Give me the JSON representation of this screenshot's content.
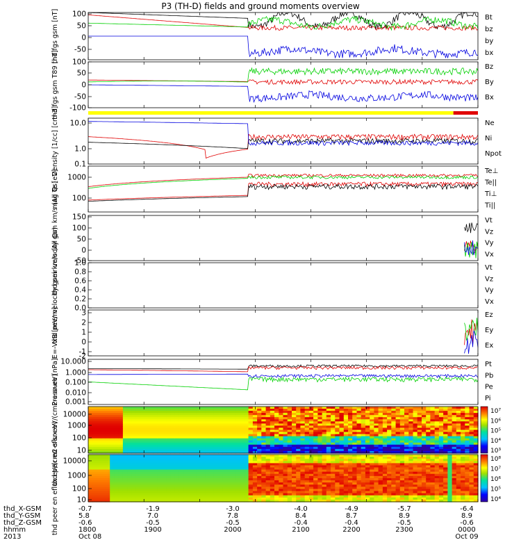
{
  "title": "P3 (TH-D) fields and ground moments overview",
  "colors": {
    "black": "#000000",
    "red": "#e00000",
    "green": "#00d000",
    "blue": "#0000e0",
    "yellow": "#ffff00"
  },
  "footer": {
    "rows": [
      {
        "label": "thd_X-GSM",
        "values": [
          "-0.7",
          "-1.9",
          "-3.0",
          "-4.0",
          "-4.9",
          "-5.7",
          "-6.4"
        ]
      },
      {
        "label": "thd_Y-GSM",
        "values": [
          "5.8",
          "7.0",
          "7.8",
          "8.4",
          "8.7",
          "8.9",
          "8.9"
        ]
      },
      {
        "label": "thd_Z-GSM",
        "values": [
          "-0.6",
          "-0.5",
          "-0.5",
          "-0.4",
          "-0.4",
          "-0.5",
          "-0.6"
        ]
      },
      {
        "label": "hhmm",
        "values": [
          "1800",
          "1900",
          "2000",
          "2100",
          "2200",
          "2300",
          "0000"
        ]
      },
      {
        "label": "2013",
        "values": [
          "Oct 08",
          "",
          "",
          "",
          "",
          "",
          "Oct 09"
        ]
      }
    ]
  },
  "chart_data": [
    {
      "type": "line",
      "ylabel": "thd fgs gsm [nT]",
      "ylim": [
        -100,
        100
      ],
      "ticks": [
        "100",
        "50",
        "0",
        "-50"
      ],
      "series": [
        {
          "name": "Bt",
          "color": "black"
        },
        {
          "name": "bz",
          "color": "red"
        },
        {
          "name": "by",
          "color": "green"
        },
        {
          "name": "bx",
          "color": "blue"
        }
      ]
    },
    {
      "type": "line",
      "ylabel": "thd fgs gsm T89 [nT]",
      "ylim": [
        -130,
        110
      ],
      "ticks": [
        "100",
        "50",
        "0",
        "-50",
        "-100"
      ],
      "series": [
        {
          "name": "Bz",
          "color": "red"
        },
        {
          "name": "By",
          "color": "green"
        },
        {
          "name": "Bx",
          "color": "blue"
        }
      ]
    },
    {
      "type": "line",
      "ylabel": "Density [1/cc] [cm-3]",
      "yscale": "log",
      "ylim": [
        0.1,
        30
      ],
      "ticks": [
        "10.0",
        "1.0",
        "0.1"
      ],
      "series": [
        {
          "name": "Ne",
          "color": "red"
        },
        {
          "name": "Ni",
          "color": "black"
        },
        {
          "name": "Npot",
          "color": "blue"
        }
      ]
    },
    {
      "type": "line",
      "ylabel": "mag Te [eV]",
      "yscale": "log",
      "ylim": [
        20,
        20000
      ],
      "ticks": [
        "1000",
        "100"
      ],
      "series": [
        {
          "name": "Te⊥",
          "color": "red"
        },
        {
          "name": "Te||",
          "color": "black"
        },
        {
          "name": "Ti⊥",
          "color": "red"
        },
        {
          "name": "Ti||",
          "color": "green"
        }
      ]
    },
    {
      "type": "line",
      "ylabel": "thd peir velocity gsm km/s (All Qs)",
      "ylim": [
        -50,
        150
      ],
      "ticks": [
        "150",
        "100",
        "50",
        "0",
        "-50"
      ],
      "series": [
        {
          "name": "Vt",
          "color": "black"
        },
        {
          "name": "Vz",
          "color": "red"
        },
        {
          "name": "Vy",
          "color": "green"
        },
        {
          "name": "Vx",
          "color": "blue"
        }
      ]
    },
    {
      "type": "line",
      "ylabel": "thd peer velocity gsm km/s (All Qs)",
      "ylim": [
        0,
        1
      ],
      "ticks": [
        "1.0",
        "0.8",
        "0.6",
        "0.4",
        "0.2",
        "0.0"
      ],
      "series": [
        {
          "name": "Vt",
          "color": "black"
        },
        {
          "name": "Vz",
          "color": "red"
        },
        {
          "name": "Vy",
          "color": "green"
        },
        {
          "name": "Vx",
          "color": "blue"
        }
      ]
    },
    {
      "type": "line",
      "ylabel": "E=-VxB [mV/m]",
      "ylim": [
        -2,
        3
      ],
      "ticks": [
        "3",
        "2",
        "1",
        "0",
        "-1",
        "-2"
      ],
      "series": [
        {
          "name": "Ez",
          "color": "red"
        },
        {
          "name": "Ey",
          "color": "green"
        },
        {
          "name": "Ex",
          "color": "blue"
        }
      ]
    },
    {
      "type": "line",
      "ylabel": "Pressure [nPa]",
      "yscale": "log",
      "ylim": [
        0.001,
        10
      ],
      "ticks": [
        "10.000",
        "1.000",
        "0.100",
        "0.010",
        "0.001"
      ],
      "series": [
        {
          "name": "Pt",
          "color": "black"
        },
        {
          "name": "Pb",
          "color": "red"
        },
        {
          "name": "Pe",
          "color": "green"
        },
        {
          "name": "Pi",
          "color": "blue"
        }
      ]
    },
    {
      "type": "heatmap",
      "ylabel": "thd peir en eflux eV/(cm2-s-sr-eV)",
      "yscale": "log",
      "ylim": [
        5,
        20000
      ],
      "ticks": [
        "10000",
        "1000",
        "100",
        "10"
      ],
      "colorbar": {
        "ticks": [
          "10⁷",
          "10⁶",
          "10⁵",
          "10⁴",
          "10³"
        ],
        "range": [
          1000,
          10000000
        ]
      }
    },
    {
      "type": "heatmap",
      "ylabel": "thd peer en eflux eV/(cm2-s-sr-eV)",
      "yscale": "log",
      "ylim": [
        5,
        20000
      ],
      "ticks": [
        "10000",
        "1000",
        "100",
        "10"
      ],
      "colorbar": {
        "ticks": [
          "10⁸",
          "10⁷",
          "10⁶",
          "10⁵",
          "10⁴"
        ],
        "range": [
          10000,
          100000000
        ]
      }
    }
  ]
}
